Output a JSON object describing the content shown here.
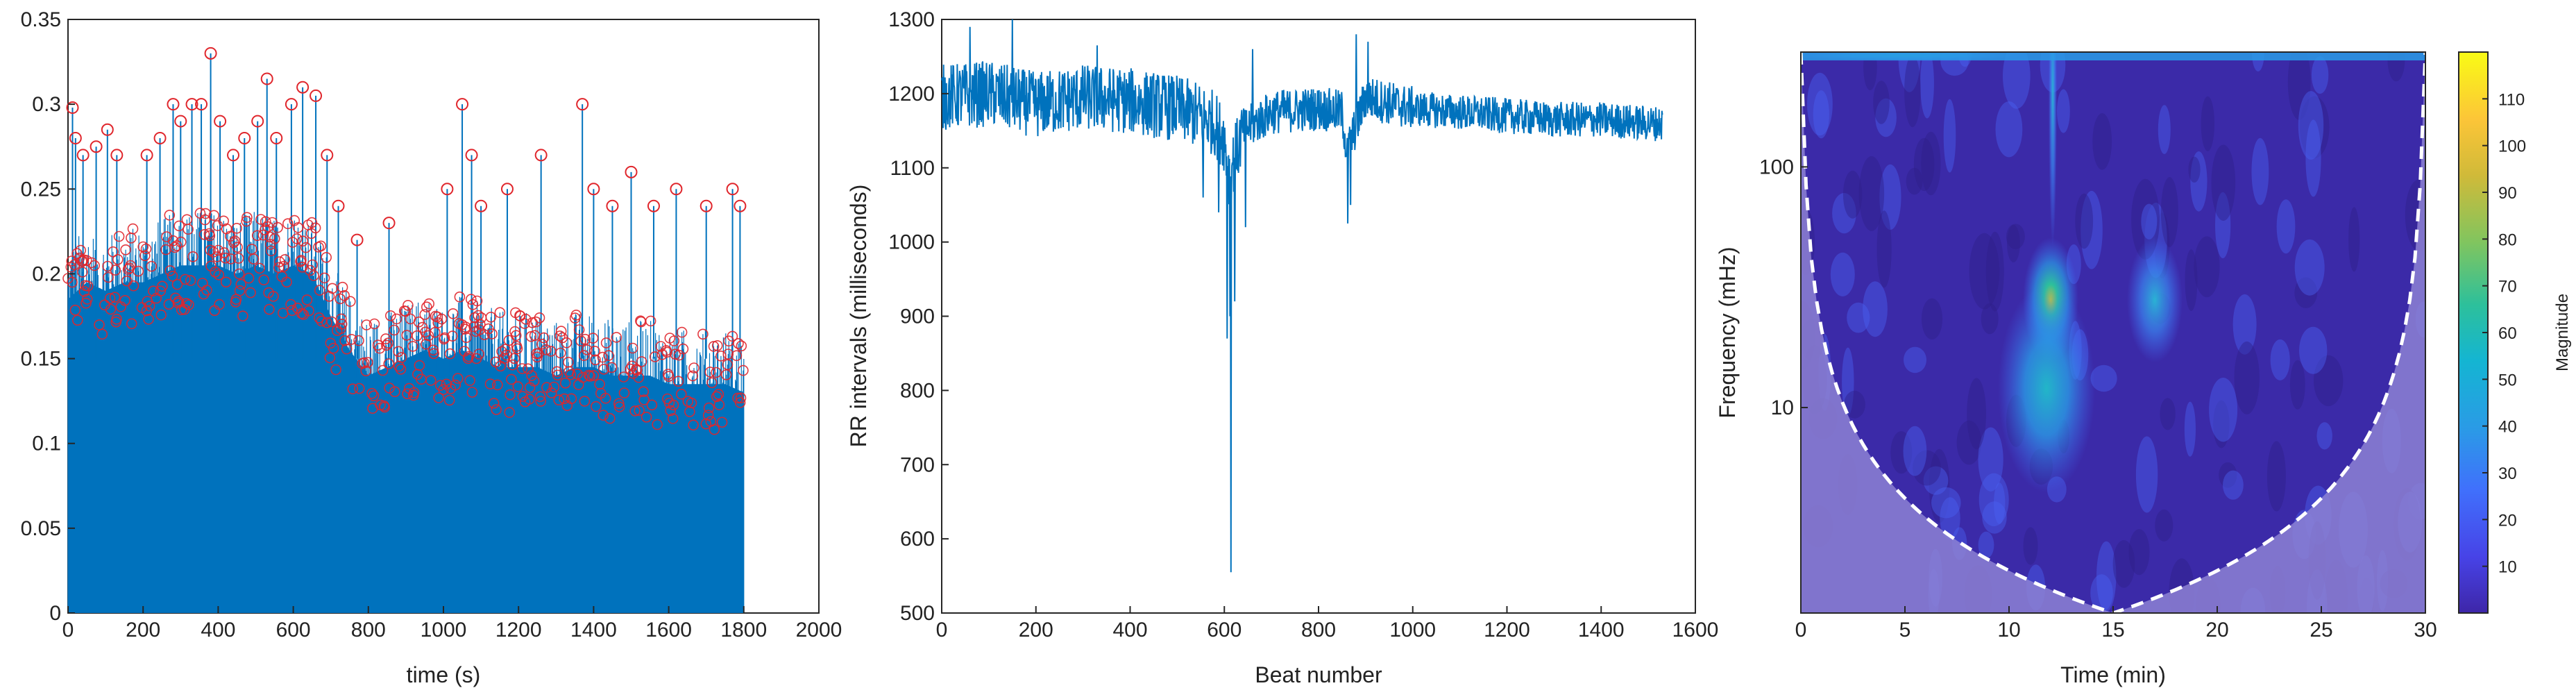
{
  "chart_data": [
    {
      "type": "stem",
      "title": "",
      "xlabel": "time (s)",
      "ylabel": "",
      "xlim": [
        0,
        2000
      ],
      "ylim": [
        0,
        0.35
      ],
      "xticks": [
        "0",
        "200",
        "400",
        "600",
        "800",
        "1000",
        "1200",
        "1400",
        "1600",
        "1800",
        "2000"
      ],
      "yticks": [
        "0",
        "0.05",
        "0.1",
        "0.15",
        "0.2",
        "0.25",
        "0.3",
        "0.35"
      ],
      "series": [
        {
          "stem_color": "#0072bd",
          "marker_color": "#e0262c",
          "x_range": [
            0,
            1800
          ],
          "baseline_level": 0.16,
          "envelope": [
            [
              0,
              0.23
            ],
            [
              50,
              0.24
            ],
            [
              100,
              0.235
            ],
            [
              150,
              0.24
            ],
            [
              200,
              0.24
            ],
            [
              250,
              0.245
            ],
            [
              300,
              0.25
            ],
            [
              350,
              0.25
            ],
            [
              400,
              0.25
            ],
            [
              450,
              0.245
            ],
            [
              500,
              0.25
            ],
            [
              550,
              0.245
            ],
            [
              600,
              0.25
            ],
            [
              650,
              0.245
            ],
            [
              700,
              0.22
            ],
            [
              750,
              0.2
            ],
            [
              800,
              0.185
            ],
            [
              850,
              0.19
            ],
            [
              900,
              0.195
            ],
            [
              950,
              0.2
            ],
            [
              1000,
              0.195
            ],
            [
              1050,
              0.2
            ],
            [
              1100,
              0.195
            ],
            [
              1150,
              0.19
            ],
            [
              1200,
              0.19
            ],
            [
              1250,
              0.19
            ],
            [
              1300,
              0.185
            ],
            [
              1350,
              0.19
            ],
            [
              1400,
              0.19
            ],
            [
              1450,
              0.185
            ],
            [
              1500,
              0.185
            ],
            [
              1550,
              0.185
            ],
            [
              1600,
              0.18
            ],
            [
              1650,
              0.18
            ],
            [
              1700,
              0.18
            ],
            [
              1750,
              0.18
            ],
            [
              1800,
              0.175
            ]
          ],
          "peaks": [
            [
              12,
              0.298
            ],
            [
              20,
              0.28
            ],
            [
              40,
              0.27
            ],
            [
              75,
              0.275
            ],
            [
              105,
              0.285
            ],
            [
              130,
              0.27
            ],
            [
              210,
              0.27
            ],
            [
              245,
              0.28
            ],
            [
              280,
              0.3
            ],
            [
              300,
              0.29
            ],
            [
              330,
              0.3
            ],
            [
              355,
              0.3
            ],
            [
              380,
              0.33
            ],
            [
              405,
              0.29
            ],
            [
              440,
              0.27
            ],
            [
              470,
              0.28
            ],
            [
              505,
              0.29
            ],
            [
              530,
              0.315
            ],
            [
              555,
              0.28
            ],
            [
              595,
              0.3
            ],
            [
              625,
              0.31
            ],
            [
              660,
              0.305
            ],
            [
              690,
              0.27
            ],
            [
              720,
              0.24
            ],
            [
              770,
              0.22
            ],
            [
              855,
              0.23
            ],
            [
              1010,
              0.25
            ],
            [
              1050,
              0.3
            ],
            [
              1075,
              0.27
            ],
            [
              1100,
              0.24
            ],
            [
              1170,
              0.25
            ],
            [
              1260,
              0.27
            ],
            [
              1370,
              0.3
            ],
            [
              1400,
              0.25
            ],
            [
              1450,
              0.24
            ],
            [
              1500,
              0.26
            ],
            [
              1560,
              0.24
            ],
            [
              1620,
              0.25
            ],
            [
              1700,
              0.24
            ],
            [
              1770,
              0.25
            ],
            [
              1790,
              0.24
            ]
          ]
        }
      ]
    },
    {
      "type": "line",
      "title": "",
      "xlabel": "Beat number",
      "ylabel": "RR intervals (milliseconds)",
      "xlim": [
        0,
        1600
      ],
      "ylim": [
        500,
        1300
      ],
      "xticks": [
        "0",
        "200",
        "400",
        "600",
        "800",
        "1000",
        "1200",
        "1400",
        "1600"
      ],
      "yticks": [
        "500",
        "600",
        "700",
        "800",
        "900",
        "1000",
        "1100",
        "1200",
        "1300"
      ],
      "series": [
        {
          "color": "#0072bd",
          "x_range": [
            0,
            1530
          ],
          "trend": [
            [
              0,
              1195
            ],
            [
              100,
              1200
            ],
            [
              200,
              1185
            ],
            [
              300,
              1195
            ],
            [
              400,
              1190
            ],
            [
              500,
              1180
            ],
            [
              550,
              1170
            ],
            [
              580,
              1160
            ],
            [
              600,
              1140
            ],
            [
              610,
              1090
            ],
            [
              640,
              1150
            ],
            [
              700,
              1175
            ],
            [
              800,
              1180
            ],
            [
              850,
              1175
            ],
            [
              860,
              1120
            ],
            [
              900,
              1195
            ],
            [
              1000,
              1180
            ],
            [
              1100,
              1175
            ],
            [
              1200,
              1170
            ],
            [
              1300,
              1165
            ],
            [
              1400,
              1165
            ],
            [
              1500,
              1160
            ],
            [
              1530,
              1160
            ]
          ],
          "dips": [
            [
              555,
              1060
            ],
            [
              588,
              1040
            ],
            [
              606,
              870
            ],
            [
              612,
              900
            ],
            [
              614,
              555
            ],
            [
              622,
              920
            ],
            [
              645,
              1020
            ],
            [
              862,
              1025
            ],
            [
              868,
              1050
            ]
          ],
          "spikes": [
            [
              60,
              1290
            ],
            [
              150,
              1300
            ],
            [
              330,
              1265
            ],
            [
              660,
              1260
            ],
            [
              880,
              1280
            ],
            [
              905,
              1270
            ]
          ]
        }
      ]
    },
    {
      "type": "heatmap",
      "title": "",
      "xlabel": "Time (min)",
      "ylabel": "Frequency (mHz)",
      "xlim": [
        0,
        30
      ],
      "ylim_mHz": [
        1.4,
        300
      ],
      "yscale": "log",
      "xticks": [
        "0",
        "5",
        "10",
        "15",
        "20",
        "25",
        "30"
      ],
      "yticks": [
        {
          "value": 100,
          "label": "100"
        },
        {
          "value": 10,
          "label": "10"
        }
      ],
      "colorbar": {
        "label": "Magnitude",
        "range": [
          0,
          120
        ],
        "ticks": [
          "10",
          "20",
          "30",
          "40",
          "50",
          "60",
          "70",
          "80",
          "90",
          "100",
          "110"
        ],
        "colormap": [
          "#3e26a8",
          "#4743e7",
          "#4070fc",
          "#2a9be6",
          "#14b5d2",
          "#2dc09b",
          "#80c55f",
          "#d0ba39",
          "#fcc538",
          "#f9fb15"
        ]
      },
      "background_color": "#3b2aa8",
      "cone_fill_color": "#8d81d3",
      "cone_boundary": "white dashed",
      "features": [
        {
          "time_min": 12,
          "freq_mHz": 28,
          "magnitude": 70
        },
        {
          "time_min": 11.8,
          "freq_mHz": 12,
          "magnitude": 55
        },
        {
          "time_min": 17,
          "freq_mHz": 28,
          "magnitude": 40
        },
        {
          "time_min": 12.1,
          "freq_mHz": 200,
          "magnitude": 45
        },
        {
          "time_min": 5,
          "freq_mHz": 290,
          "magnitude": 55
        }
      ]
    }
  ]
}
